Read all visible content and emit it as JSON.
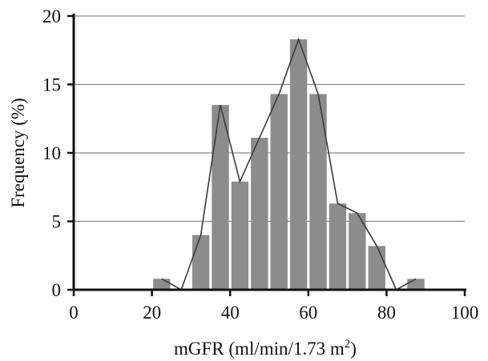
{
  "chart_data": {
    "type": "bar",
    "title": "",
    "xlabel": "mGFR (ml/min/1.73 m",
    "xlabel_superscript": "2",
    "xlabel_close": ")",
    "ylabel": "Frequency (%)",
    "xlim": [
      0,
      100
    ],
    "ylim": [
      0,
      20
    ],
    "xticks": [
      0,
      20,
      40,
      60,
      80,
      100
    ],
    "yticks": [
      0,
      5,
      10,
      15,
      20
    ],
    "grid": "horizontal",
    "bin_width": 5,
    "bins": [
      {
        "x": 22.5,
        "value": 0.8
      },
      {
        "x": 27.5,
        "value": 0
      },
      {
        "x": 32.5,
        "value": 4.0
      },
      {
        "x": 37.5,
        "value": 13.5
      },
      {
        "x": 42.5,
        "value": 7.9
      },
      {
        "x": 47.5,
        "value": 11.1
      },
      {
        "x": 52.5,
        "value": 14.3
      },
      {
        "x": 57.5,
        "value": 18.3
      },
      {
        "x": 62.5,
        "value": 14.3
      },
      {
        "x": 67.5,
        "value": 6.3
      },
      {
        "x": 72.5,
        "value": 5.6
      },
      {
        "x": 77.5,
        "value": 3.2
      },
      {
        "x": 82.5,
        "value": 0
      },
      {
        "x": 87.5,
        "value": 0.8
      }
    ],
    "line": {
      "x": [
        22.5,
        27.5,
        32.5,
        37.5,
        42.5,
        47.5,
        52.5,
        57.5,
        62.5,
        67.5,
        72.5,
        77.5,
        82.5,
        87.5
      ],
      "y": [
        0.8,
        0,
        4.0,
        13.5,
        7.9,
        11.1,
        14.3,
        18.3,
        14.3,
        6.3,
        5.6,
        3.2,
        0,
        0.8
      ]
    },
    "colors": {
      "bar": "#8c8c8c",
      "line": "#3a3a3a",
      "axis": "#111111",
      "grid": "#8a8a8a"
    }
  }
}
